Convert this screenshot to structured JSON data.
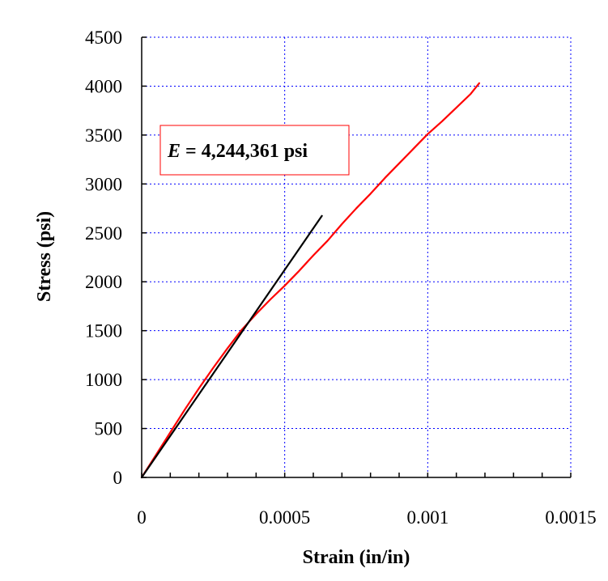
{
  "chart_data": {
    "type": "line",
    "xlabel": "Strain (in/in)",
    "ylabel": "Stress (psi)",
    "xlim": [
      0,
      0.0015
    ],
    "ylim": [
      0,
      4500
    ],
    "xticks": [
      0,
      0.0005,
      0.001,
      0.0015
    ],
    "xtick_labels": [
      "0",
      "0.0005",
      "0.001",
      "0.0015"
    ],
    "yticks": [
      0,
      500,
      1000,
      1500,
      2000,
      2500,
      3000,
      3500,
      4000,
      4500
    ],
    "ytick_labels": [
      "0",
      "500",
      "1000",
      "1500",
      "2000",
      "2500",
      "3000",
      "3500",
      "4000",
      "4500"
    ],
    "grid": true,
    "series": [
      {
        "color": "#ff0000",
        "x": [
          0,
          5e-05,
          0.0001,
          0.00015,
          0.0002,
          0.00025,
          0.0003,
          0.00035,
          0.0004,
          0.00045,
          0.0005,
          0.00055,
          0.0006,
          0.00065,
          0.0007,
          0.00075,
          0.0008,
          0.00085,
          0.0009,
          0.00095,
          0.001,
          0.00105,
          0.0011,
          0.00115,
          0.00118
        ],
        "y": [
          0,
          230,
          460,
          690,
          910,
          1120,
          1320,
          1510,
          1670,
          1820,
          1960,
          2110,
          2270,
          2420,
          2590,
          2750,
          2900,
          3060,
          3210,
          3360,
          3510,
          3640,
          3780,
          3920,
          4030
        ]
      },
      {
        "color": "#000000",
        "x": [
          0,
          0.00063
        ],
        "y": [
          0,
          2674
        ]
      }
    ],
    "annotations": [
      {
        "symbol": "E",
        "text": " = 4,244,361 psi"
      }
    ],
    "colors": {
      "grid": "#0000ff",
      "frame": "#000000",
      "annotation_border": "#ff0000"
    }
  }
}
